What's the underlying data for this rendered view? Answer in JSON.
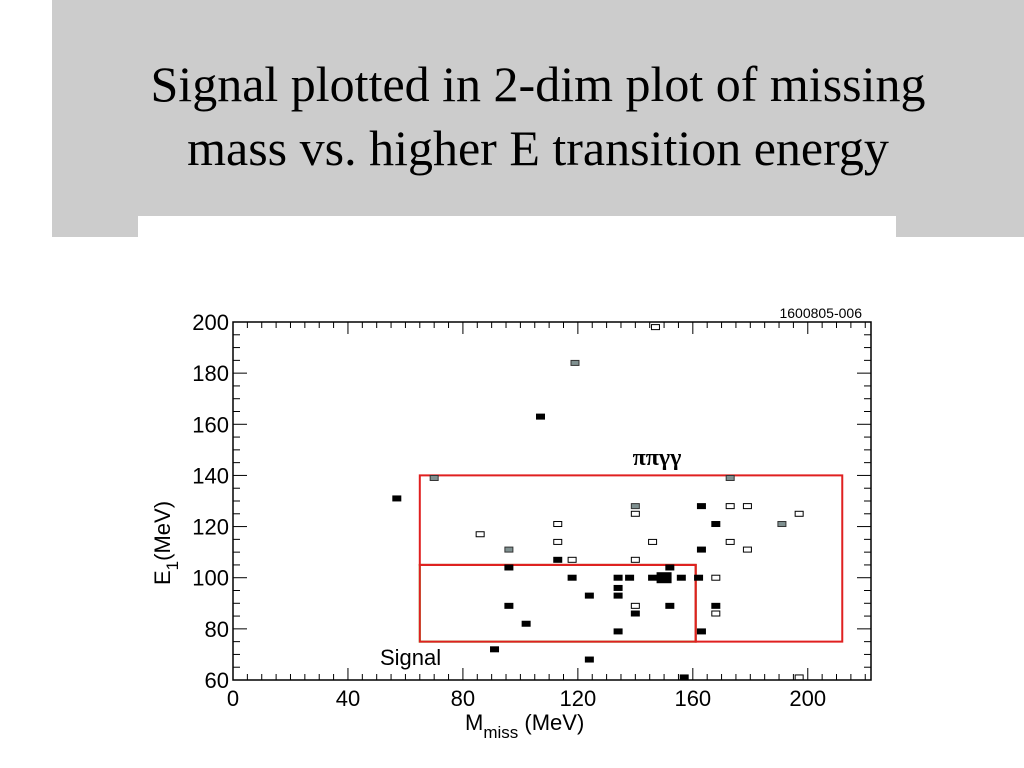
{
  "slide": {
    "title_line1": "Signal plotted in 2-dim plot of missing",
    "title_line2": "mass vs. higher E transition energy"
  },
  "chart_data": {
    "type": "scatter",
    "figure_id": "1600805-006",
    "xlabel_main": "M",
    "xlabel_sub": "miss",
    "xlabel_unit": " (MeV)",
    "ylabel_main": "E",
    "ylabel_sub": "1",
    "ylabel_unit": "(MeV)",
    "xlim": [
      0,
      222
    ],
    "ylim": [
      60,
      200
    ],
    "x_ticks": [
      0,
      40,
      80,
      120,
      160,
      200
    ],
    "y_ticks": [
      60,
      80,
      100,
      120,
      140,
      160,
      180,
      200
    ],
    "grid": false,
    "regions": [
      {
        "label": "ππγγ",
        "color": "#e02020",
        "shape": "polygon",
        "points": [
          [
            65,
            140
          ],
          [
            212,
            140
          ],
          [
            212,
            75
          ],
          [
            161,
            75
          ],
          [
            161,
            105
          ],
          [
            65,
            105
          ]
        ]
      },
      {
        "label": "",
        "color": "#e02020",
        "shape": "rect",
        "x": [
          65,
          161
        ],
        "y": [
          75,
          105
        ]
      },
      {
        "label": "Signal",
        "color": "#22dd22",
        "shape": "rect",
        "x": [
          65,
          161
        ],
        "y": [
          75,
          105
        ]
      }
    ],
    "region_labels": {
      "pipigg": "ππγγ",
      "signal": "Signal"
    },
    "series": [
      {
        "style": "filled",
        "points": [
          [
            57,
            131
          ],
          [
            107,
            163
          ],
          [
            96,
            104
          ],
          [
            96,
            89
          ],
          [
            102,
            82
          ],
          [
            91,
            72
          ],
          [
            113,
            107
          ],
          [
            118,
            100
          ],
          [
            124,
            93
          ],
          [
            124,
            68
          ],
          [
            134,
            100
          ],
          [
            134,
            96
          ],
          [
            134,
            93
          ],
          [
            134,
            79
          ],
          [
            138,
            100
          ],
          [
            140,
            86
          ],
          [
            146,
            100
          ],
          [
            151,
            100
          ],
          [
            152,
            104
          ],
          [
            152,
            89
          ],
          [
            156,
            100
          ],
          [
            157,
            61
          ],
          [
            162,
            100
          ],
          [
            163,
            128
          ],
          [
            163,
            111
          ],
          [
            163,
            79
          ],
          [
            168,
            121
          ],
          [
            168,
            89
          ]
        ]
      },
      {
        "style": "filled-large",
        "points": [
          [
            150,
            100
          ]
        ]
      },
      {
        "style": "grey",
        "points": [
          [
            70,
            139
          ],
          [
            96,
            111
          ],
          [
            119,
            184
          ],
          [
            140,
            128
          ],
          [
            173,
            139
          ],
          [
            191,
            121
          ]
        ]
      },
      {
        "style": "open",
        "points": [
          [
            147,
            198
          ],
          [
            86,
            117
          ],
          [
            113,
            121
          ],
          [
            113,
            114
          ],
          [
            118,
            107
          ],
          [
            140,
            125
          ],
          [
            140,
            107
          ],
          [
            140,
            89
          ],
          [
            146,
            114
          ],
          [
            168,
            100
          ],
          [
            168,
            86
          ],
          [
            173,
            128
          ],
          [
            173,
            114
          ],
          [
            179,
            128
          ],
          [
            179,
            111
          ],
          [
            197,
            125
          ],
          [
            197,
            61
          ]
        ]
      }
    ]
  }
}
